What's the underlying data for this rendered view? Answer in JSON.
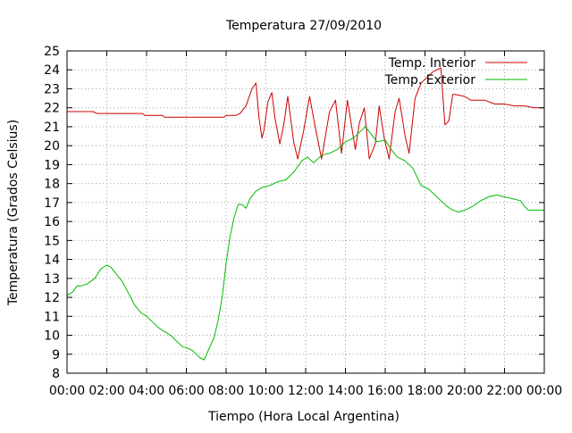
{
  "chart_data": {
    "type": "line",
    "title": "Temperatura 27/09/2010",
    "xlabel": "Tiempo (Hora Local Argentina)",
    "ylabel": "Temperatura (Grados Celsius)",
    "xlim": [
      0,
      24
    ],
    "ylim": [
      8,
      25
    ],
    "x_ticks": [
      "00:00",
      "02:00",
      "04:00",
      "06:00",
      "08:00",
      "10:00",
      "12:00",
      "14:00",
      "16:00",
      "18:00",
      "20:00",
      "22:00",
      "00:00"
    ],
    "y_ticks": [
      8,
      9,
      10,
      11,
      12,
      13,
      14,
      15,
      16,
      17,
      18,
      19,
      20,
      21,
      22,
      23,
      24,
      25
    ],
    "grid": true,
    "legend_position": "top-right",
    "series": [
      {
        "name": "Temp. Interior",
        "color": "#cc0000",
        "x": [
          0,
          1.2,
          1.3,
          1.5,
          3.8,
          3.9,
          4.8,
          4.9,
          6,
          7.9,
          8,
          8.5,
          8.7,
          9,
          9.3,
          9.5,
          9.65,
          9.8,
          9.9,
          10.1,
          10.3,
          10.45,
          10.7,
          10.9,
          11.1,
          11.4,
          11.6,
          11.9,
          12.2,
          12.5,
          12.8,
          13.2,
          13.5,
          13.8,
          14.1,
          14.5,
          14.7,
          14.95,
          15.2,
          15.5,
          15.7,
          15.95,
          16.2,
          16.5,
          16.7,
          17,
          17.2,
          17.5,
          17.8,
          18.1,
          18.4,
          18.6,
          18.8,
          19,
          19.2,
          19.4,
          19.5,
          20,
          20.3,
          21,
          21.5,
          22,
          22.5,
          23,
          23.5,
          24
        ],
        "values": [
          21.8,
          21.8,
          21.8,
          21.7,
          21.7,
          21.6,
          21.6,
          21.5,
          21.5,
          21.5,
          21.6,
          21.6,
          21.7,
          22.1,
          23.0,
          23.3,
          21.5,
          20.4,
          20.8,
          22.3,
          22.8,
          21.5,
          20.1,
          21.1,
          22.6,
          20.2,
          19.3,
          20.8,
          22.6,
          20.9,
          19.3,
          21.8,
          22.4,
          19.6,
          22.4,
          19.8,
          21.2,
          22.0,
          19.3,
          20.1,
          22.1,
          20.4,
          19.3,
          21.8,
          22.5,
          20.5,
          19.6,
          22.5,
          23.3,
          23.6,
          23.9,
          24.0,
          24.1,
          21.1,
          21.3,
          22.7,
          22.7,
          22.6,
          22.4,
          22.4,
          22.2,
          22.2,
          22.1,
          22.1,
          22.0,
          22.0
        ]
      },
      {
        "name": "Temp. Exterior",
        "color": "#00bb00",
        "x": [
          0,
          0.3,
          0.5,
          0.7,
          1,
          1.4,
          1.7,
          2,
          2.2,
          2.5,
          2.8,
          3.1,
          3.4,
          3.7,
          4,
          4.3,
          4.6,
          4.9,
          5.2,
          5.5,
          5.8,
          6.1,
          6.3,
          6.5,
          6.7,
          6.9,
          7.1,
          7.4,
          7.6,
          7.8,
          8,
          8.2,
          8.4,
          8.6,
          8.8,
          9,
          9.2,
          9.5,
          9.8,
          10.2,
          10.6,
          11,
          11.4,
          11.8,
          12.1,
          12.4,
          12.8,
          13.2,
          13.6,
          14,
          14.4,
          14.8,
          15,
          15.3,
          15.6,
          16,
          16.3,
          16.6,
          17,
          17.4,
          17.8,
          18.2,
          18.5,
          18.8,
          19.1,
          19.4,
          19.7,
          20,
          20.4,
          20.8,
          21.2,
          21.6,
          22,
          22.4,
          22.8,
          23,
          23.2,
          23.5,
          24
        ],
        "values": [
          12.1,
          12.3,
          12.6,
          12.6,
          12.7,
          13.0,
          13.5,
          13.7,
          13.6,
          13.2,
          12.8,
          12.2,
          11.6,
          11.2,
          11.0,
          10.7,
          10.4,
          10.2,
          10.0,
          9.7,
          9.4,
          9.3,
          9.2,
          9.0,
          8.8,
          8.7,
          9.2,
          9.9,
          10.8,
          12.0,
          13.8,
          15.2,
          16.2,
          16.9,
          16.9,
          16.7,
          17.2,
          17.6,
          17.8,
          17.9,
          18.1,
          18.2,
          18.6,
          19.2,
          19.4,
          19.1,
          19.5,
          19.6,
          19.8,
          20.2,
          20.4,
          20.8,
          21.0,
          20.6,
          20.2,
          20.3,
          19.8,
          19.4,
          19.2,
          18.8,
          17.9,
          17.7,
          17.4,
          17.1,
          16.8,
          16.6,
          16.5,
          16.6,
          16.8,
          17.1,
          17.3,
          17.4,
          17.3,
          17.2,
          17.1,
          16.8,
          16.6,
          16.6,
          16.6
        ]
      }
    ]
  }
}
